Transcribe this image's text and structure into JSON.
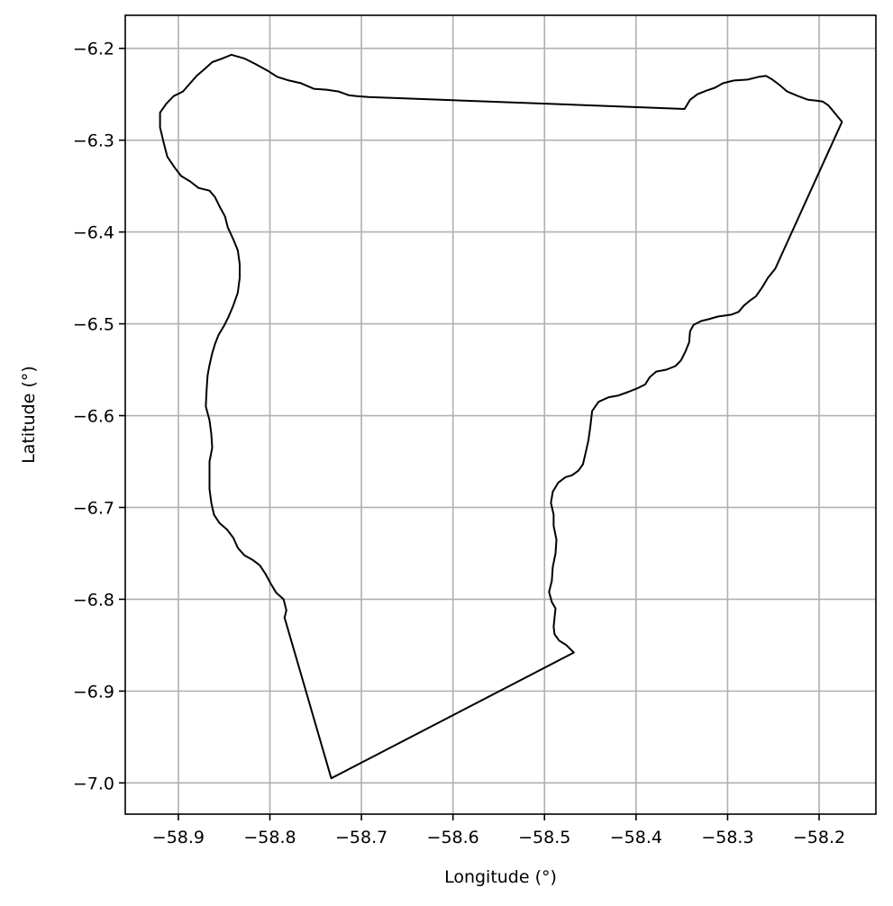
{
  "chart_data": {
    "type": "map",
    "title": "",
    "xlabel": "Longitude (°)",
    "ylabel": "Latitude (°)",
    "xlim": [
      -58.958,
      -58.138
    ],
    "ylim": [
      -7.034,
      -6.164
    ],
    "grid": true,
    "x_ticks": [
      {
        "value": -58.9,
        "label": "−58.9"
      },
      {
        "value": -58.8,
        "label": "−58.8"
      },
      {
        "value": -58.7,
        "label": "−58.7"
      },
      {
        "value": -58.6,
        "label": "−58.6"
      },
      {
        "value": -58.5,
        "label": "−58.5"
      },
      {
        "value": -58.4,
        "label": "−58.4"
      },
      {
        "value": -58.3,
        "label": "−58.3"
      },
      {
        "value": -58.2,
        "label": "−58.2"
      }
    ],
    "y_ticks": [
      {
        "value": -6.2,
        "label": "−6.2"
      },
      {
        "value": -6.3,
        "label": "−6.3"
      },
      {
        "value": -6.4,
        "label": "−6.4"
      },
      {
        "value": -6.5,
        "label": "−6.5"
      },
      {
        "value": -6.6,
        "label": "−6.6"
      },
      {
        "value": -6.7,
        "label": "−6.7"
      },
      {
        "value": -6.8,
        "label": "−6.8"
      },
      {
        "value": -6.9,
        "label": "−6.9"
      },
      {
        "value": -7.0,
        "label": "−7.0"
      }
    ],
    "colors": {
      "outline": "#000000",
      "grid": "#b0b0b0",
      "frame": "#000000",
      "background": "#ffffff"
    },
    "series": [
      {
        "outline": [
          [
            -58.692,
            -6.253
          ],
          [
            -58.705,
            -6.252
          ],
          [
            -58.714,
            -6.251
          ],
          [
            -58.725,
            -6.247
          ],
          [
            -58.738,
            -6.245
          ],
          [
            -58.752,
            -6.244
          ],
          [
            -58.766,
            -6.238
          ],
          [
            -58.779,
            -6.235
          ],
          [
            -58.792,
            -6.231
          ],
          [
            -58.803,
            -6.224
          ],
          [
            -58.816,
            -6.217
          ],
          [
            -58.828,
            -6.211
          ],
          [
            -58.842,
            -6.207
          ],
          [
            -58.852,
            -6.211
          ],
          [
            -58.863,
            -6.215
          ],
          [
            -58.872,
            -6.223
          ],
          [
            -58.88,
            -6.23
          ],
          [
            -58.888,
            -6.239
          ],
          [
            -58.895,
            -6.247
          ],
          [
            -58.905,
            -6.252
          ],
          [
            -58.913,
            -6.26
          ],
          [
            -58.92,
            -6.27
          ],
          [
            -58.92,
            -6.286
          ],
          [
            -58.916,
            -6.303
          ],
          [
            -58.912,
            -6.318
          ],
          [
            -58.904,
            -6.33
          ],
          [
            -58.897,
            -6.339
          ],
          [
            -58.887,
            -6.345
          ],
          [
            -58.878,
            -6.352
          ],
          [
            -58.866,
            -6.355
          ],
          [
            -58.86,
            -6.362
          ],
          [
            -58.855,
            -6.372
          ],
          [
            -58.849,
            -6.383
          ],
          [
            -58.846,
            -6.395
          ],
          [
            -58.84,
            -6.408
          ],
          [
            -58.835,
            -6.42
          ],
          [
            -58.833,
            -6.435
          ],
          [
            -58.833,
            -6.45
          ],
          [
            -58.835,
            -6.466
          ],
          [
            -58.84,
            -6.48
          ],
          [
            -58.845,
            -6.492
          ],
          [
            -58.85,
            -6.502
          ],
          [
            -58.856,
            -6.512
          ],
          [
            -58.86,
            -6.522
          ],
          [
            -58.863,
            -6.532
          ],
          [
            -58.866,
            -6.545
          ],
          [
            -58.868,
            -6.556
          ],
          [
            -58.869,
            -6.57
          ],
          [
            -58.87,
            -6.59
          ],
          [
            -58.866,
            -6.605
          ],
          [
            -58.864,
            -6.62
          ],
          [
            -58.863,
            -6.635
          ],
          [
            -58.866,
            -6.65
          ],
          [
            -58.866,
            -6.665
          ],
          [
            -58.866,
            -6.68
          ],
          [
            -58.864,
            -6.695
          ],
          [
            -58.861,
            -6.708
          ],
          [
            -58.855,
            -6.717
          ],
          [
            -58.847,
            -6.724
          ],
          [
            -58.84,
            -6.733
          ],
          [
            -58.835,
            -6.744
          ],
          [
            -58.828,
            -6.752
          ],
          [
            -58.819,
            -6.757
          ],
          [
            -58.811,
            -6.763
          ],
          [
            -58.805,
            -6.772
          ],
          [
            -58.799,
            -6.783
          ],
          [
            -58.793,
            -6.793
          ],
          [
            -58.785,
            -6.8
          ],
          [
            -58.782,
            -6.812
          ],
          [
            -58.784,
            -6.82
          ],
          [
            -58.733,
            -6.995
          ],
          [
            -58.468,
            -6.858
          ],
          [
            -58.476,
            -6.85
          ],
          [
            -58.484,
            -6.845
          ],
          [
            -58.489,
            -6.838
          ],
          [
            -58.49,
            -6.83
          ],
          [
            -58.489,
            -6.82
          ],
          [
            -58.488,
            -6.81
          ],
          [
            -58.492,
            -6.803
          ],
          [
            -58.495,
            -6.792
          ],
          [
            -58.492,
            -6.78
          ],
          [
            -58.491,
            -6.765
          ],
          [
            -58.488,
            -6.75
          ],
          [
            -58.487,
            -6.735
          ],
          [
            -58.49,
            -6.72
          ],
          [
            -58.49,
            -6.708
          ],
          [
            -58.493,
            -6.695
          ],
          [
            -58.491,
            -6.683
          ],
          [
            -58.485,
            -6.673
          ],
          [
            -58.477,
            -6.667
          ],
          [
            -58.47,
            -6.665
          ],
          [
            -58.463,
            -6.66
          ],
          [
            -58.458,
            -6.653
          ],
          [
            -58.455,
            -6.64
          ],
          [
            -58.452,
            -6.627
          ],
          [
            -58.45,
            -6.612
          ],
          [
            -58.448,
            -6.595
          ],
          [
            -58.441,
            -6.585
          ],
          [
            -58.43,
            -6.58
          ],
          [
            -58.419,
            -6.578
          ],
          [
            -58.408,
            -6.574
          ],
          [
            -58.398,
            -6.57
          ],
          [
            -58.39,
            -6.566
          ],
          [
            -58.385,
            -6.558
          ],
          [
            -58.378,
            -6.552
          ],
          [
            -58.367,
            -6.55
          ],
          [
            -58.357,
            -6.546
          ],
          [
            -58.351,
            -6.54
          ],
          [
            -58.346,
            -6.53
          ],
          [
            -58.342,
            -6.52
          ],
          [
            -58.341,
            -6.508
          ],
          [
            -58.337,
            -6.501
          ],
          [
            -58.329,
            -6.497
          ],
          [
            -58.321,
            -6.495
          ],
          [
            -58.31,
            -6.492
          ],
          [
            -58.296,
            -6.49
          ],
          [
            -58.288,
            -6.487
          ],
          [
            -58.282,
            -6.48
          ],
          [
            -58.276,
            -6.475
          ],
          [
            -58.269,
            -6.47
          ],
          [
            -58.262,
            -6.46
          ],
          [
            -58.256,
            -6.45
          ],
          [
            -58.248,
            -6.44
          ],
          [
            -58.175,
            -6.28
          ],
          [
            -58.18,
            -6.274
          ],
          [
            -58.185,
            -6.268
          ],
          [
            -58.19,
            -6.262
          ],
          [
            -58.196,
            -6.258
          ],
          [
            -58.203,
            -6.257
          ],
          [
            -58.212,
            -6.256
          ],
          [
            -58.223,
            -6.252
          ],
          [
            -58.235,
            -6.247
          ],
          [
            -58.243,
            -6.24
          ],
          [
            -58.251,
            -6.234
          ],
          [
            -58.258,
            -6.23
          ],
          [
            -58.266,
            -6.231
          ],
          [
            -58.278,
            -6.234
          ],
          [
            -58.293,
            -6.235
          ],
          [
            -58.305,
            -6.238
          ],
          [
            -58.314,
            -6.243
          ],
          [
            -58.323,
            -6.246
          ],
          [
            -58.333,
            -6.25
          ],
          [
            -58.341,
            -6.256
          ],
          [
            -58.347,
            -6.266
          ],
          [
            -58.692,
            -6.253
          ]
        ]
      }
    ]
  }
}
